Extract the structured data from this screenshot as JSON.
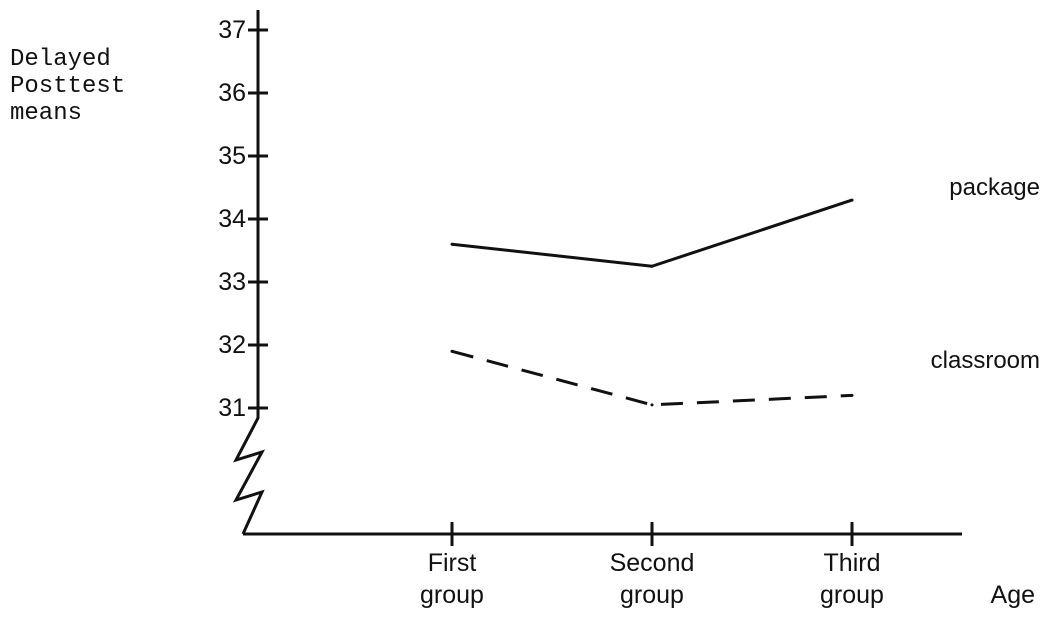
{
  "chart_data": {
    "type": "line",
    "ylabel": "Delayed\nPosttest\nmeans",
    "xlabel": "Age",
    "categories": [
      "First group",
      "Second group",
      "Third group"
    ],
    "category_labels": [
      {
        "line1": "First",
        "line2": "group"
      },
      {
        "line1": "Second",
        "line2": "group"
      },
      {
        "line1": "Third",
        "line2": "group"
      }
    ],
    "yticks": [
      31,
      32,
      33,
      34,
      35,
      36,
      37
    ],
    "ylim": [
      31,
      37
    ],
    "axis_break": true,
    "grid": false,
    "series": [
      {
        "name": "package",
        "values": [
          33.6,
          33.25,
          34.3
        ],
        "line_style": "solid",
        "color": "#111111"
      },
      {
        "name": "classroom",
        "values": [
          31.9,
          31.05,
          31.2
        ],
        "line_style": "dashed",
        "color": "#111111"
      }
    ]
  }
}
